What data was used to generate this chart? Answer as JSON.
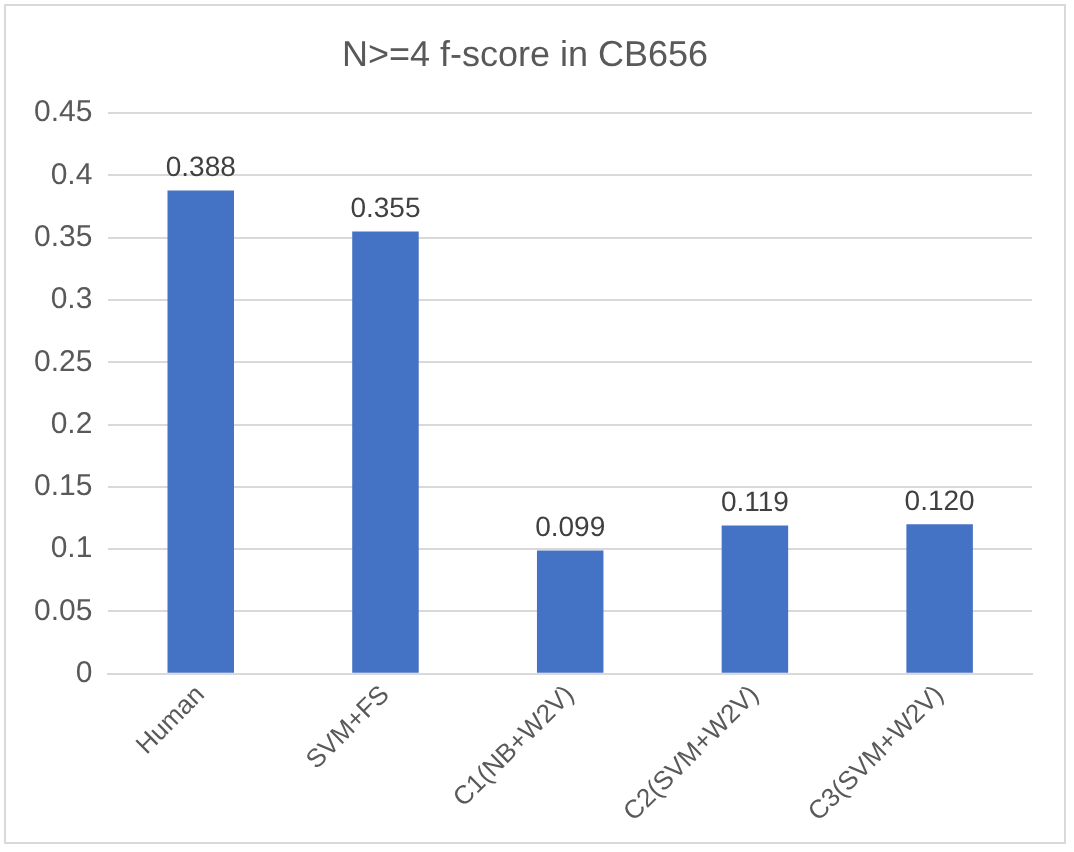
{
  "chart_data": {
    "type": "bar",
    "title": "N>=4 f-score in CB656",
    "categories": [
      "Human",
      "SVM+FS",
      "C1(NB+W2V)",
      "C2(SVM+W2V)",
      "C3(SVM+W2V)"
    ],
    "values": [
      0.388,
      0.355,
      0.099,
      0.119,
      0.12
    ],
    "value_labels": [
      "0.388",
      "0.355",
      "0.099",
      "0.119",
      "0.120"
    ],
    "color": "#4472c4",
    "ylim": [
      0,
      0.45
    ],
    "yticks": [
      0,
      0.05,
      0.1,
      0.15,
      0.2,
      0.25,
      0.3,
      0.35,
      0.4,
      0.45
    ],
    "grid": "y",
    "legend": false
  }
}
